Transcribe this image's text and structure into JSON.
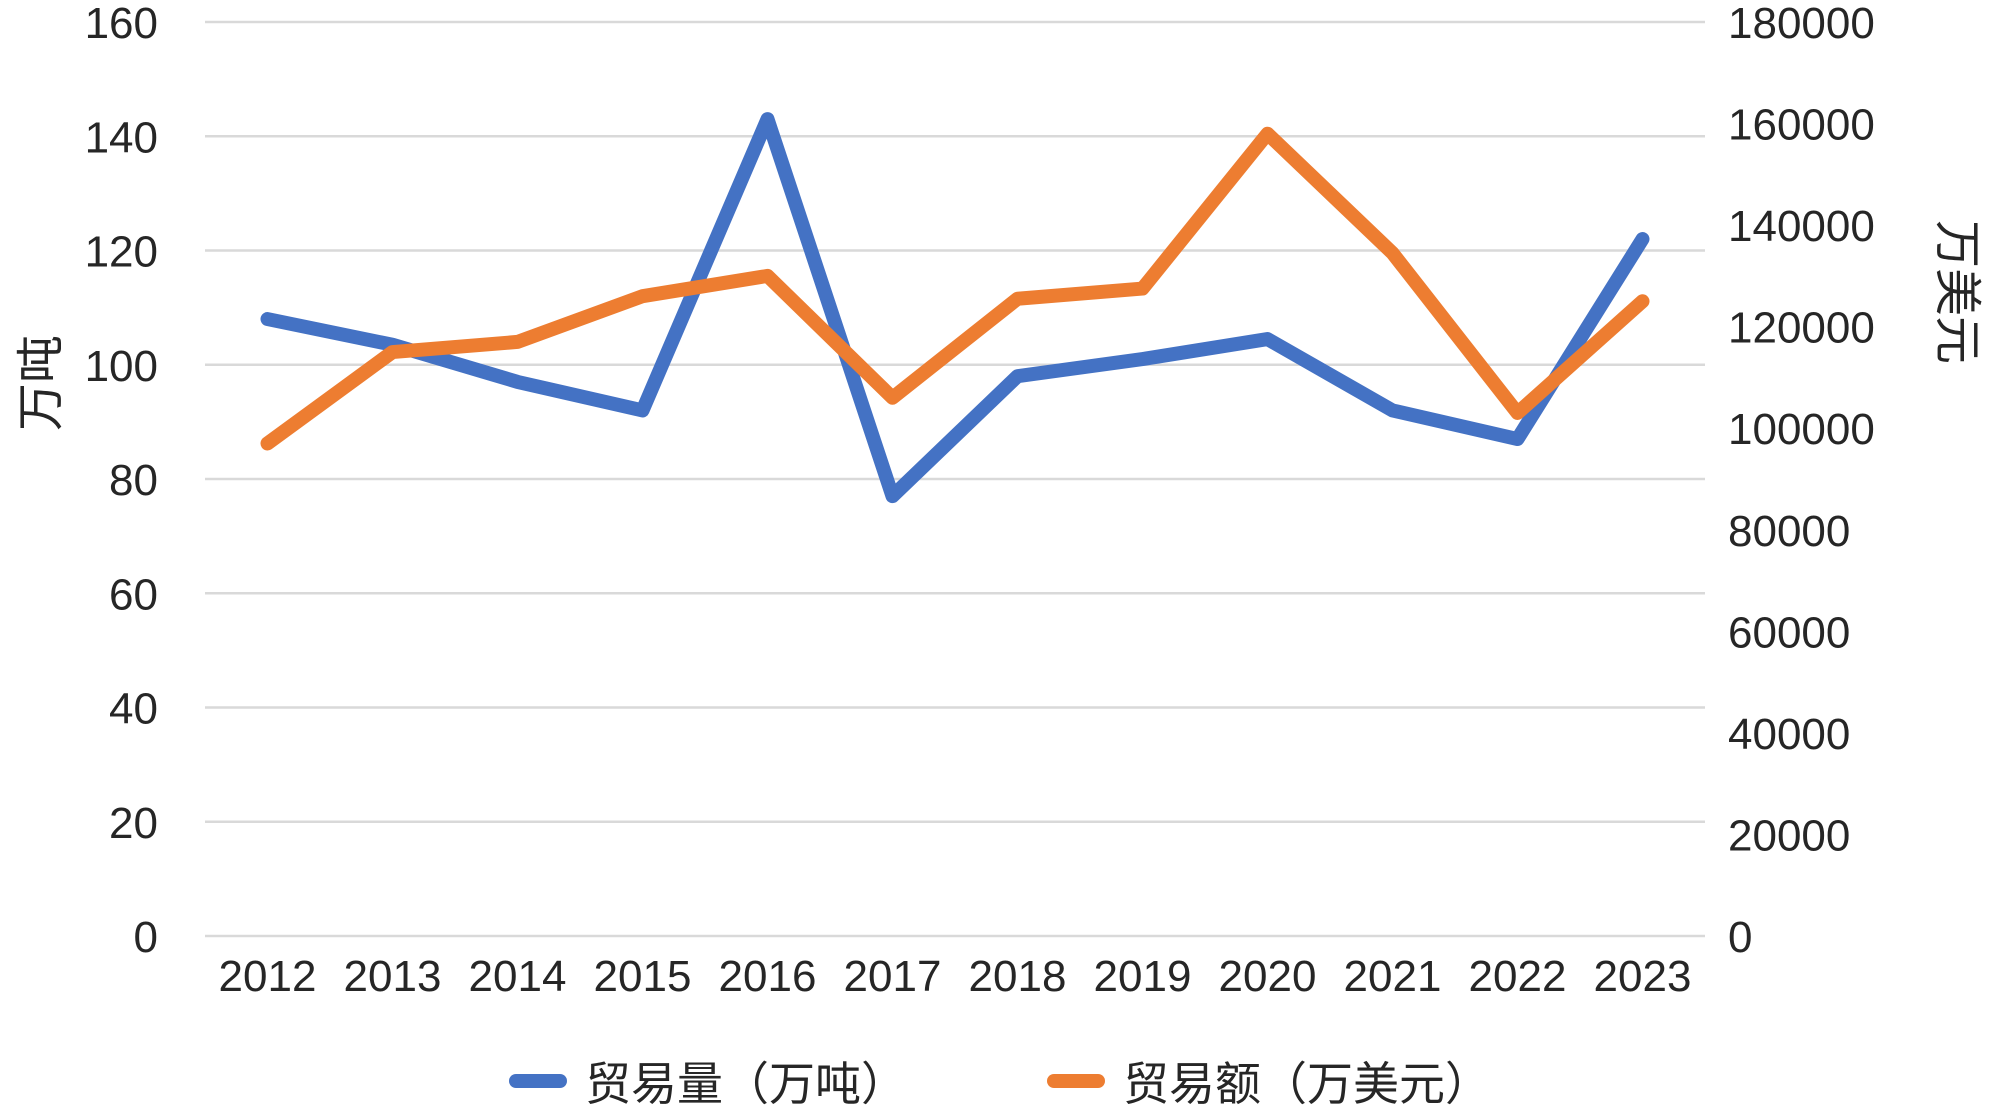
{
  "chart_data": {
    "type": "line",
    "title": "",
    "categories": [
      "2012",
      "2013",
      "2014",
      "2015",
      "2016",
      "2017",
      "2018",
      "2019",
      "2020",
      "2021",
      "2022",
      "2023"
    ],
    "series": [
      {
        "name": "贸易量（万吨）",
        "axis": "left",
        "color": "#4472C4",
        "values": [
          108,
          103.5,
          97,
          92,
          143,
          77,
          98,
          101,
          104.5,
          92,
          87,
          122
        ]
      },
      {
        "name": "贸易额（万美元）",
        "axis": "right",
        "color": "#ED7D31",
        "values": [
          97000,
          115000,
          117000,
          126000,
          130000,
          106000,
          125500,
          127500,
          158000,
          134500,
          103000,
          125000
        ]
      }
    ],
    "axes": {
      "left": {
        "label": "万吨",
        "min": 0,
        "max": 160,
        "step": 20,
        "tick_labels": [
          "0",
          "20",
          "40",
          "60",
          "80",
          "100",
          "120",
          "140",
          "160"
        ]
      },
      "right": {
        "label": "万美元",
        "min": 0,
        "max": 180000,
        "step": 20000,
        "tick_labels": [
          "0",
          "20000",
          "40000",
          "60000",
          "80000",
          "100000",
          "120000",
          "140000",
          "160000",
          "180000"
        ]
      }
    },
    "grid": true,
    "legend_position": "bottom",
    "gridline_color": "#D9D9D9",
    "text_color": "#262626",
    "background": "#FFFFFF"
  }
}
